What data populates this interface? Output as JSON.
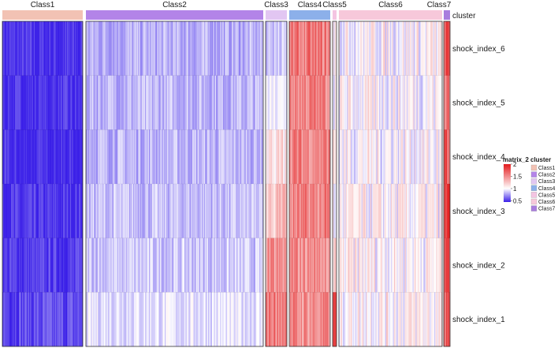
{
  "chart_data": {
    "type": "heatmap",
    "title": "",
    "row_labels": [
      "shock_index_6",
      "shock_index_5",
      "shock_index_4",
      "shock_index_3",
      "shock_index_2",
      "shock_index_1"
    ],
    "annotation_label": "cluster",
    "columns": [
      {
        "name": "Class1",
        "mean": [
          0.48,
          0.47,
          0.45,
          0.48,
          0.5,
          0.55
        ],
        "color": "#F2C2B4"
      },
      {
        "name": "Class2",
        "mean": [
          0.8,
          0.82,
          0.82,
          0.84,
          0.86,
          0.93
        ],
        "color": "#B384E8"
      },
      {
        "name": "Class3",
        "mean": [
          0.85,
          0.95,
          1.1,
          1.25,
          1.45,
          1.6
        ],
        "color": "#E2C6F2"
      },
      {
        "name": "Class4",
        "mean": [
          1.55,
          1.55,
          1.55,
          1.52,
          1.5,
          1.5
        ],
        "color": "#8CB0EA"
      },
      {
        "name": "Class5",
        "mean": [
          1.0,
          1.0,
          1.05,
          1.05,
          1.2,
          2.0
        ],
        "color": "#F4C4E2"
      },
      {
        "name": "Class6",
        "mean": [
          1.03,
          1.02,
          1.02,
          1.03,
          1.05,
          1.06
        ],
        "color": "#F7C8DA"
      },
      {
        "name": "Class7",
        "mean": [
          1.7,
          1.65,
          1.7,
          1.85,
          1.8,
          1.7
        ],
        "color": "#A97DDE"
      }
    ],
    "color_scale": {
      "title": "matrix_2",
      "ticks": [
        2,
        1.5,
        1,
        0.5
      ],
      "min": 0.45,
      "mid": 1.0,
      "max": 2.0,
      "colors": [
        "#3A1FE8",
        "#FFFFFF",
        "#E31A1C"
      ]
    },
    "legend": {
      "title": "cluster",
      "entries": [
        "Class1",
        "Class2",
        "Class3",
        "Class4",
        "Class5",
        "Class6",
        "Class7"
      ]
    }
  }
}
